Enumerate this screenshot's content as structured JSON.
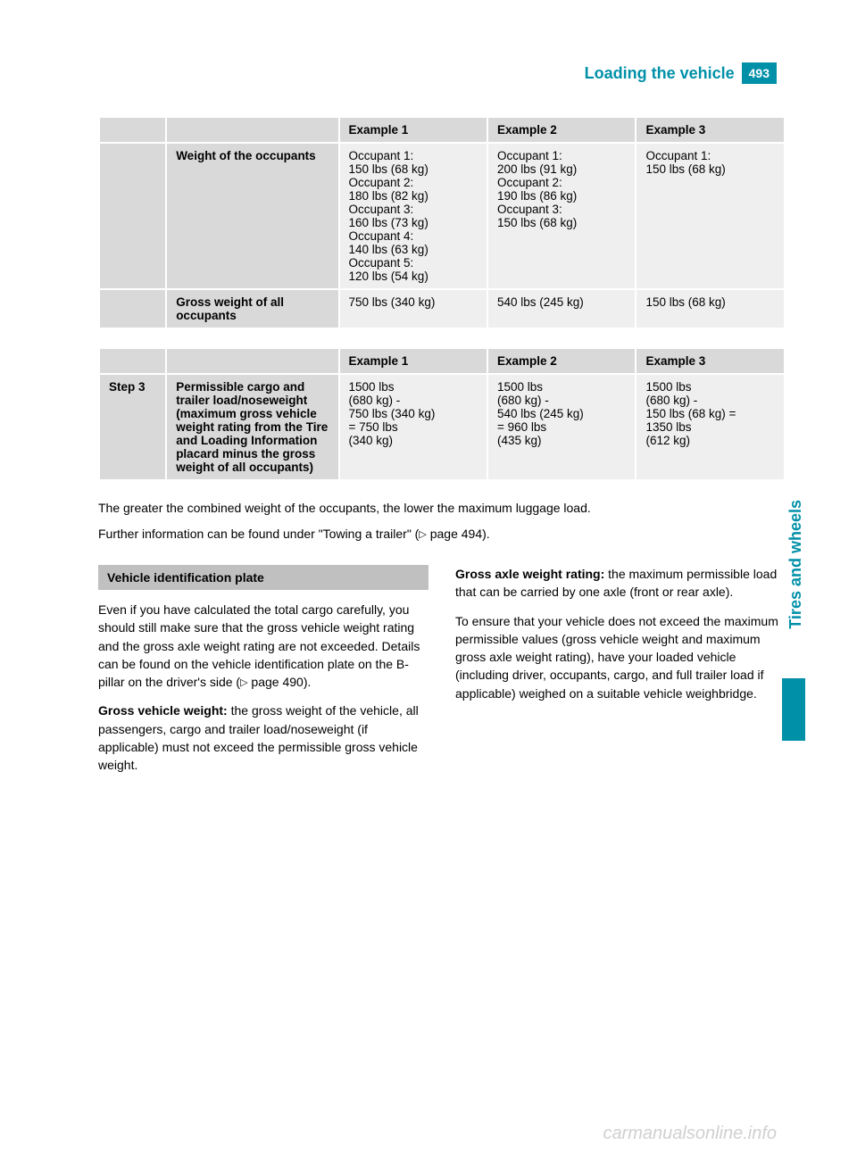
{
  "header": {
    "title": "Loading the vehicle",
    "page_number": "493"
  },
  "side_tab": "Tires and wheels",
  "table1": {
    "headers": [
      "",
      "",
      "Example 1",
      "Example 2",
      "Example 3"
    ],
    "rows": [
      {
        "step": "",
        "label": "Weight of the occupants",
        "ex1": "Occupant 1:\n150 lbs (68 kg)\nOccupant 2:\n180 lbs (82 kg)\nOccupant 3:\n160 lbs (73 kg)\nOccupant 4:\n140 lbs (63 kg)\nOccupant 5:\n120 lbs (54 kg)",
        "ex2": "Occupant 1:\n200 lbs (91 kg)\nOccupant 2:\n190 lbs (86 kg)\nOccupant 3:\n150 lbs (68 kg)",
        "ex3": "Occupant 1:\n150 lbs (68 kg)"
      },
      {
        "step": "",
        "label": "Gross weight of all occupants",
        "ex1": "750 lbs (340 kg)",
        "ex2": "540 lbs (245 kg)",
        "ex3": "150 lbs (68 kg)"
      }
    ]
  },
  "table2": {
    "headers": [
      "",
      "",
      "Example 1",
      "Example 2",
      "Example 3"
    ],
    "rows": [
      {
        "step": "Step 3",
        "label": "Permissible cargo and trailer load/noseweight (maximum gross vehicle weight rating from the Tire and Loading Information placard minus the gross weight of all occupants)",
        "ex1": "1500 lbs\n(680 kg) -\n750 lbs (340 kg)\n= 750 lbs\n(340 kg)",
        "ex2": "1500 lbs\n(680 kg) -\n540 lbs (245 kg)\n= 960 lbs\n(435 kg)",
        "ex3": "1500 lbs\n(680 kg) -\n150 lbs (68 kg) =\n1350 lbs\n(612 kg)"
      }
    ]
  },
  "after_table_p1": "The greater the combined weight of the occupants, the lower the maximum luggage load.",
  "after_table_p2_a": "Further information can be found under \"Towing a trailer\" (",
  "after_table_p2_b": " page 494).",
  "left_col": {
    "heading": "Vehicle identification plate",
    "p1_a": "Even if you have calculated the total cargo carefully, you should still make sure that the gross vehicle weight rating and the gross axle weight rating are not exceeded. Details can be found on the vehicle identification plate on the B-pillar on the driver's side (",
    "p1_b": " page 490).",
    "p2_bold": "Gross vehicle weight:",
    "p2_rest": " the gross weight of the vehicle, all passengers, cargo and trailer load/noseweight (if applicable) must not exceed the permissible gross vehicle weight."
  },
  "right_col": {
    "p1_bold": "Gross axle weight rating:",
    "p1_rest": " the maximum permissible load that can be carried by one axle (front or rear axle).",
    "p2": "To ensure that your vehicle does not exceed the maximum permissible values (gross vehicle weight and maximum gross axle weight rating), have your loaded vehicle (including driver, occupants, cargo, and full trailer load if applicable) weighed on a suitable vehicle weighbridge."
  },
  "watermark": "carmanualsonline.info",
  "colors": {
    "teal": "#0090a8",
    "gray": "#d9d9d9",
    "light": "#efefef",
    "heading_bg": "#c0c0c0"
  }
}
